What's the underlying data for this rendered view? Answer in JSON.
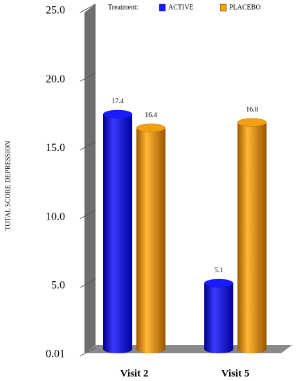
{
  "chart_data": {
    "type": "bar",
    "y_label": "TOTAL SCORE DEPRESSION",
    "legend_title": "Treatment:",
    "legend": "top",
    "categories": [
      "Visit 2",
      "Visit 5"
    ],
    "series": [
      {
        "name": "ACTIVE",
        "color": "#1a1aff",
        "values": [
          17.4,
          5.1
        ]
      },
      {
        "name": "PLACEBO",
        "color": "#f0a010",
        "values": [
          16.4,
          16.8
        ]
      }
    ],
    "ylim": [
      0,
      25
    ],
    "yticks": [
      0.01,
      {
        "value": 5,
        "label": "5.0"
      },
      {
        "value": 10,
        "label": "10.0"
      },
      {
        "value": 15,
        "label": "15.0"
      },
      {
        "value": 20,
        "label": "20.0"
      },
      {
        "value": 25,
        "label": "25.0"
      }
    ]
  }
}
